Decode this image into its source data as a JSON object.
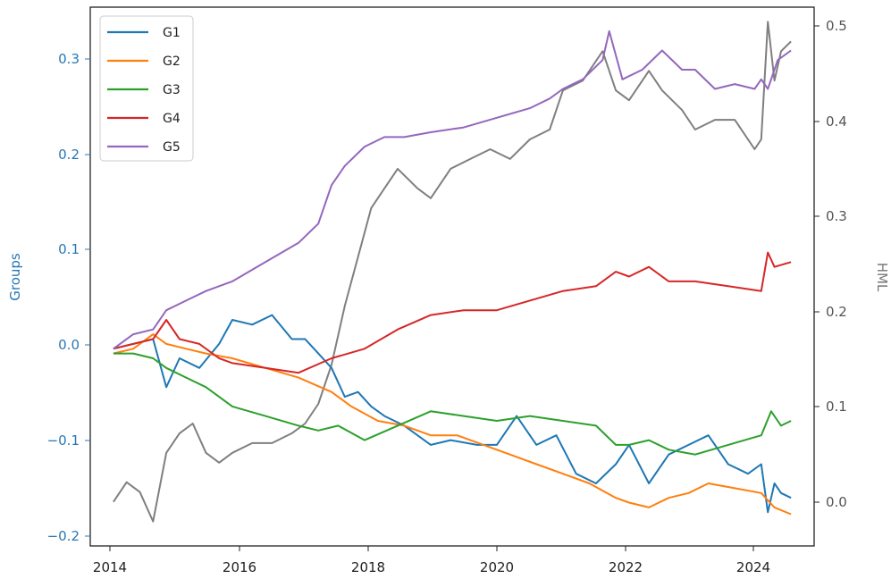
{
  "chart_data": {
    "type": "line",
    "xlabel": "",
    "ylabel": "Groups",
    "ylabel_right": "HML",
    "x_ticks": [
      "2014",
      "2016",
      "2018",
      "2020",
      "2022",
      "2024"
    ],
    "y_ticks_left": [
      "0.3",
      "0.2",
      "0.1",
      "0.0",
      "−0.1",
      "−0.2"
    ],
    "y_ticks_right": [
      "0.5",
      "0.4",
      "0.3",
      "0.2",
      "0.1",
      "0.0"
    ],
    "xlim": [
      2013.85,
      2024.8
    ],
    "ylim_left": [
      -0.205,
      0.355
    ],
    "ylim_right": [
      -0.045,
      0.505
    ],
    "legend_position": "upper-left",
    "grid": false,
    "left_axis_color": "#2878b5",
    "series": [
      {
        "name": "G1",
        "axis": "left",
        "color": "#1f77b4",
        "x": [
          2014.2,
          2014.5,
          2014.8,
          2015.0,
          2015.2,
          2015.5,
          2015.8,
          2016.0,
          2016.3,
          2016.6,
          2016.9,
          2017.1,
          2017.3,
          2017.5,
          2017.7,
          2017.9,
          2018.1,
          2018.3,
          2018.6,
          2019.0,
          2019.3,
          2019.7,
          2020.0,
          2020.3,
          2020.6,
          2020.9,
          2021.2,
          2021.5,
          2021.8,
          2022.0,
          2022.3,
          2022.6,
          2022.9,
          2023.2,
          2023.5,
          2023.8,
          2024.0,
          2024.1,
          2024.2,
          2024.3,
          2024.45
        ],
        "y": [
          0.0,
          0.005,
          0.01,
          -0.04,
          -0.01,
          -0.02,
          0.005,
          0.03,
          0.025,
          0.035,
          0.01,
          0.01,
          -0.005,
          -0.02,
          -0.05,
          -0.045,
          -0.06,
          -0.07,
          -0.08,
          -0.1,
          -0.095,
          -0.1,
          -0.1,
          -0.07,
          -0.1,
          -0.09,
          -0.13,
          -0.14,
          -0.12,
          -0.1,
          -0.14,
          -0.11,
          -0.1,
          -0.09,
          -0.12,
          -0.13,
          -0.12,
          -0.17,
          -0.14,
          -0.15,
          -0.155
        ]
      },
      {
        "name": "G2",
        "axis": "left",
        "color": "#ff7f0e",
        "x": [
          2014.2,
          2014.5,
          2014.8,
          2015.0,
          2015.3,
          2015.6,
          2016.0,
          2016.5,
          2017.0,
          2017.5,
          2017.8,
          2018.2,
          2018.6,
          2019.0,
          2019.4,
          2019.8,
          2020.2,
          2020.6,
          2021.0,
          2021.4,
          2021.8,
          2022.0,
          2022.3,
          2022.6,
          2022.9,
          2023.2,
          2023.6,
          2024.0,
          2024.2,
          2024.45
        ],
        "y": [
          -0.005,
          0.0,
          0.015,
          0.005,
          0.0,
          -0.005,
          -0.01,
          -0.02,
          -0.03,
          -0.045,
          -0.06,
          -0.075,
          -0.08,
          -0.09,
          -0.09,
          -0.1,
          -0.11,
          -0.12,
          -0.13,
          -0.14,
          -0.155,
          -0.16,
          -0.165,
          -0.155,
          -0.15,
          -0.14,
          -0.145,
          -0.15,
          -0.165,
          -0.172
        ]
      },
      {
        "name": "G3",
        "axis": "left",
        "color": "#2ca02c",
        "x": [
          2014.2,
          2014.5,
          2014.8,
          2015.0,
          2015.3,
          2015.6,
          2016.0,
          2016.5,
          2017.0,
          2017.3,
          2017.6,
          2018.0,
          2018.5,
          2019.0,
          2019.5,
          2020.0,
          2020.5,
          2021.0,
          2021.5,
          2021.8,
          2022.0,
          2022.3,
          2022.6,
          2023.0,
          2023.5,
          2024.0,
          2024.15,
          2024.3,
          2024.45
        ],
        "y": [
          -0.005,
          -0.005,
          -0.01,
          -0.02,
          -0.03,
          -0.04,
          -0.06,
          -0.07,
          -0.08,
          -0.085,
          -0.08,
          -0.095,
          -0.08,
          -0.065,
          -0.07,
          -0.075,
          -0.07,
          -0.075,
          -0.08,
          -0.1,
          -0.1,
          -0.095,
          -0.105,
          -0.11,
          -0.1,
          -0.09,
          -0.065,
          -0.08,
          -0.075
        ]
      },
      {
        "name": "G4",
        "axis": "left",
        "color": "#d62728",
        "x": [
          2014.2,
          2014.5,
          2014.8,
          2015.0,
          2015.2,
          2015.5,
          2015.8,
          2016.0,
          2016.5,
          2017.0,
          2017.5,
          2018.0,
          2018.5,
          2019.0,
          2019.5,
          2020.0,
          2020.5,
          2021.0,
          2021.5,
          2021.8,
          2022.0,
          2022.3,
          2022.6,
          2023.0,
          2023.5,
          2024.0,
          2024.1,
          2024.2,
          2024.45
        ],
        "y": [
          0.0,
          0.005,
          0.01,
          0.03,
          0.01,
          0.005,
          -0.01,
          -0.015,
          -0.02,
          -0.025,
          -0.01,
          0.0,
          0.02,
          0.035,
          0.04,
          0.04,
          0.05,
          0.06,
          0.065,
          0.08,
          0.075,
          0.085,
          0.07,
          0.07,
          0.065,
          0.06,
          0.1,
          0.085,
          0.09
        ]
      },
      {
        "name": "G5",
        "axis": "left",
        "color": "#9467bd",
        "x": [
          2014.2,
          2014.5,
          2014.8,
          2015.0,
          2015.3,
          2015.6,
          2016.0,
          2016.5,
          2017.0,
          2017.3,
          2017.5,
          2017.7,
          2018.0,
          2018.3,
          2018.6,
          2019.0,
          2019.5,
          2020.0,
          2020.5,
          2020.8,
          2021.0,
          2021.3,
          2021.6,
          2021.7,
          2021.9,
          2022.2,
          2022.5,
          2022.8,
          2023.0,
          2023.3,
          2023.6,
          2023.9,
          2024.0,
          2024.1,
          2024.25,
          2024.45
        ],
        "y": [
          0.0,
          0.015,
          0.02,
          0.04,
          0.05,
          0.06,
          0.07,
          0.09,
          0.11,
          0.13,
          0.17,
          0.19,
          0.21,
          0.22,
          0.22,
          0.225,
          0.23,
          0.24,
          0.25,
          0.26,
          0.27,
          0.28,
          0.3,
          0.33,
          0.28,
          0.29,
          0.31,
          0.29,
          0.29,
          0.27,
          0.275,
          0.27,
          0.28,
          0.27,
          0.3,
          0.31
        ]
      },
      {
        "name": "HML",
        "axis": "right",
        "color": "#7f7f7f",
        "x": [
          2014.2,
          2014.4,
          2014.6,
          2014.8,
          2015.0,
          2015.2,
          2015.4,
          2015.6,
          2015.8,
          2016.0,
          2016.3,
          2016.6,
          2016.9,
          2017.1,
          2017.3,
          2017.5,
          2017.7,
          2017.9,
          2018.1,
          2018.3,
          2018.5,
          2018.8,
          2019.0,
          2019.3,
          2019.6,
          2019.9,
          2020.2,
          2020.5,
          2020.8,
          2021.0,
          2021.3,
          2021.6,
          2021.8,
          2022.0,
          2022.3,
          2022.5,
          2022.8,
          2023.0,
          2023.3,
          2023.6,
          2023.9,
          2024.0,
          2024.1,
          2024.2,
          2024.3,
          2024.45
        ],
        "y": [
          0.0,
          0.02,
          0.01,
          -0.02,
          0.05,
          0.07,
          0.08,
          0.05,
          0.04,
          0.05,
          0.06,
          0.06,
          0.07,
          0.08,
          0.1,
          0.14,
          0.2,
          0.25,
          0.3,
          0.32,
          0.34,
          0.32,
          0.31,
          0.34,
          0.35,
          0.36,
          0.35,
          0.37,
          0.38,
          0.42,
          0.43,
          0.46,
          0.42,
          0.41,
          0.44,
          0.42,
          0.4,
          0.38,
          0.39,
          0.39,
          0.36,
          0.37,
          0.49,
          0.43,
          0.46,
          0.47
        ]
      }
    ]
  }
}
